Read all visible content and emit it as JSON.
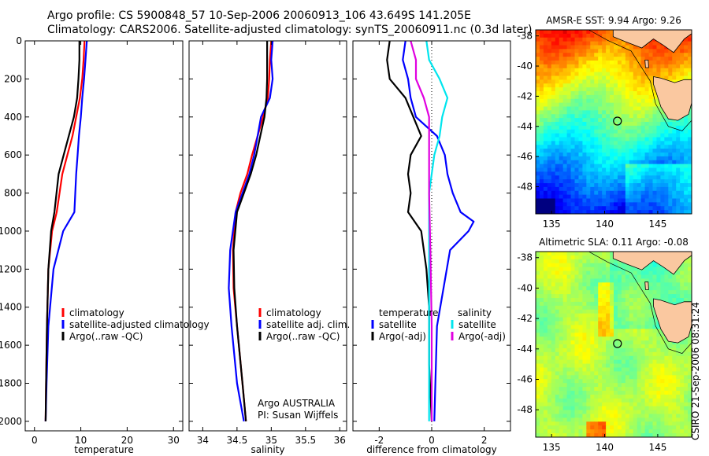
{
  "header": {
    "line1": "Argo profile: CS 5900848_57 10-Sep-2006 20060913_106 43.649S 141.205E",
    "line2": "Climatology: CARS2006. Satellite-adjusted climatology: synTS_20060911.nc (0.3d later)"
  },
  "footer_stamp": "CSIRO 21-Sep-2006 08:31:24",
  "colors": {
    "climatology": "#ff0000",
    "satellite": "#0000ff",
    "argo": "#000000",
    "sal_sat": "#00e5ee",
    "sal_argo": "#e000e0"
  },
  "chart_data": [
    {
      "type": "line",
      "panel": "temperature",
      "xlabel": "temperature",
      "ylabel": "",
      "xlim": [
        -2,
        32
      ],
      "ylim": [
        2050,
        0
      ],
      "y_reversed": true,
      "xticks": [
        0,
        10,
        20,
        30
      ],
      "yticks": [
        0,
        200,
        400,
        600,
        800,
        1000,
        1200,
        1400,
        1600,
        1800,
        2000
      ],
      "series": [
        {
          "name": "climatology",
          "color": "#ff0000",
          "x": [
            10.8,
            10.6,
            10.3,
            9.8,
            9.0,
            8.2,
            7.1,
            6.0,
            4.8,
            3.8,
            3.0,
            2.7,
            2.5,
            2.4
          ],
          "y": [
            0,
            100,
            200,
            300,
            400,
            500,
            600,
            700,
            900,
            1000,
            1200,
            1500,
            1800,
            2000
          ]
        },
        {
          "name": "satellite-adjusted climatology",
          "color": "#0000ff",
          "x": [
            11.3,
            11.0,
            10.7,
            10.3,
            10.0,
            9.6,
            9.3,
            9.0,
            8.6,
            6.2,
            4.1,
            3.0,
            2.6,
            2.4
          ],
          "y": [
            0,
            100,
            200,
            300,
            400,
            500,
            600,
            700,
            900,
            1000,
            1200,
            1500,
            1800,
            2000
          ]
        },
        {
          "name": "Argo(..raw -QC)",
          "color": "#000000",
          "x": [
            9.7,
            9.7,
            9.5,
            9.2,
            8.5,
            7.4,
            6.3,
            5.2,
            4.3,
            3.6,
            3.0,
            2.7,
            2.5,
            2.4
          ],
          "y": [
            0,
            100,
            200,
            300,
            400,
            500,
            600,
            700,
            900,
            1000,
            1200,
            1500,
            1800,
            2000
          ]
        }
      ]
    },
    {
      "type": "line",
      "panel": "salinity",
      "xlabel": "salinity",
      "ylabel": "",
      "xlim": [
        33.8,
        36.1
      ],
      "ylim": [
        2050,
        0
      ],
      "y_reversed": true,
      "xticks": [
        34,
        34.5,
        35,
        35.5,
        36
      ],
      "series": [
        {
          "name": "climatology",
          "color": "#ff0000",
          "x": [
            35.0,
            34.98,
            34.97,
            34.95,
            34.88,
            34.8,
            34.72,
            34.65,
            34.55,
            34.48,
            34.44,
            34.45,
            34.5,
            34.58,
            34.63
          ],
          "y": [
            0,
            100,
            200,
            300,
            400,
            500,
            600,
            700,
            800,
            900,
            1100,
            1300,
            1500,
            1800,
            2000
          ]
        },
        {
          "name": "satellite adj. clim.",
          "color": "#0000ff",
          "x": [
            35.02,
            35.0,
            35.02,
            34.98,
            34.85,
            34.8,
            34.75,
            34.68,
            34.58,
            34.48,
            34.4,
            34.38,
            34.42,
            34.5,
            34.6
          ],
          "y": [
            0,
            100,
            200,
            300,
            400,
            500,
            600,
            700,
            800,
            900,
            1100,
            1300,
            1500,
            1800,
            2000
          ]
        },
        {
          "name": "Argo(..raw -QC)",
          "color": "#000000",
          "x": [
            34.94,
            34.94,
            34.94,
            34.93,
            34.9,
            34.84,
            34.78,
            34.7,
            34.6,
            34.5,
            34.45,
            34.46,
            34.5,
            34.58,
            34.63
          ],
          "y": [
            0,
            100,
            200,
            300,
            400,
            500,
            600,
            700,
            800,
            900,
            1100,
            1300,
            1500,
            1800,
            2000
          ]
        }
      ],
      "annotation": {
        "line1": "Argo AUSTRALIA",
        "line2": "PI: Susan Wijffels"
      }
    },
    {
      "type": "line",
      "panel": "difference",
      "xlabel": "difference from climatology",
      "ylabel": "",
      "xlim": [
        -3,
        3
      ],
      "ylim": [
        2050,
        0
      ],
      "y_reversed": true,
      "xticks": [
        -2,
        0,
        2
      ],
      "legend_groups": [
        "temperature",
        "salinity"
      ],
      "series": [
        {
          "name": "satellite",
          "group": "temperature",
          "color": "#0000ff",
          "x": [
            -1.0,
            -1.1,
            -0.9,
            -0.8,
            -0.6,
            0.2,
            0.5,
            0.6,
            0.8,
            1.1,
            1.6,
            1.4,
            0.7,
            0.2,
            0.1
          ],
          "y": [
            0,
            100,
            200,
            300,
            400,
            500,
            600,
            700,
            800,
            900,
            950,
            1000,
            1100,
            1500,
            2000
          ]
        },
        {
          "name": "Argo(-adj)",
          "group": "temperature",
          "color": "#000000",
          "x": [
            -1.6,
            -1.7,
            -1.6,
            -1.0,
            -0.7,
            -0.4,
            -0.8,
            -0.9,
            -0.8,
            -0.9,
            -0.4,
            -0.2,
            -0.1,
            -0.1,
            0.0
          ],
          "y": [
            0,
            100,
            200,
            300,
            400,
            500,
            600,
            700,
            800,
            900,
            1000,
            1200,
            1400,
            1700,
            2000
          ]
        },
        {
          "name": "satellite",
          "group": "salinity",
          "color": "#00e5ee",
          "x": [
            -0.2,
            -0.1,
            0.3,
            0.6,
            0.4,
            0.3,
            0.1,
            0.0,
            -0.1,
            -0.1,
            -0.1,
            -0.1
          ],
          "y": [
            0,
            100,
            200,
            300,
            400,
            500,
            600,
            700,
            800,
            1100,
            1500,
            2000
          ]
        },
        {
          "name": "Argo(-adj)",
          "group": "salinity",
          "color": "#e000e0",
          "x": [
            -0.8,
            -0.6,
            -0.6,
            -0.3,
            -0.1,
            -0.1,
            -0.1,
            -0.1,
            -0.1,
            -0.05,
            0.0,
            0.0
          ],
          "y": [
            0,
            100,
            200,
            300,
            400,
            500,
            600,
            700,
            800,
            1100,
            1500,
            2000
          ]
        }
      ]
    },
    {
      "type": "heatmap",
      "panel": "sst_map",
      "title": "AMSR-E SST: 9.94 Argo: 9.26",
      "xticks": [
        135,
        140,
        145
      ],
      "yticks": [
        -38,
        -40,
        -42,
        -44,
        -46,
        -48
      ],
      "xlim": [
        133.5,
        148.2
      ],
      "ylim": [
        -49.8,
        -37.6
      ],
      "argo_position": {
        "lon": 141.205,
        "lat": -43.649
      }
    },
    {
      "type": "heatmap",
      "panel": "sla_map",
      "title": "Altimetric SLA: 0.11 Argo: -0.08",
      "xticks": [
        135,
        140,
        145
      ],
      "yticks": [
        -38,
        -40,
        -42,
        -44,
        -46,
        -48
      ],
      "xlim": [
        133.5,
        148.2
      ],
      "ylim": [
        -49.8,
        -37.6
      ],
      "argo_position": {
        "lon": 141.205,
        "lat": -43.649
      }
    }
  ]
}
